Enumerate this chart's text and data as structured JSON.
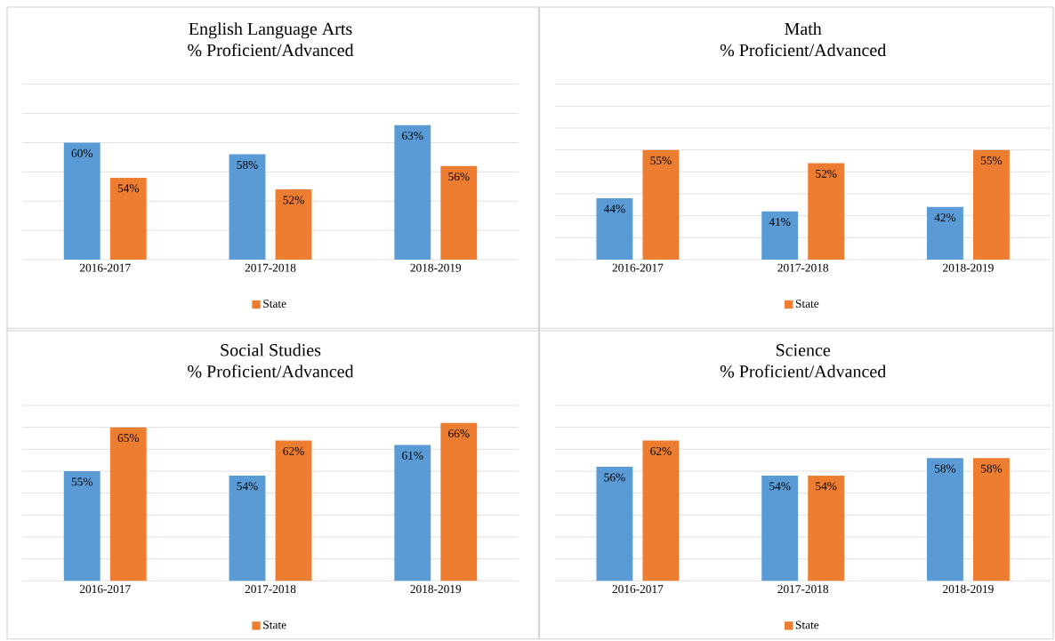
{
  "chart_data": [
    {
      "type": "bar",
      "title": "English Language Arts",
      "subtitle": "% Proficient/Advanced",
      "categories": [
        "2016-2017",
        "2017-2018",
        "2018-2019"
      ],
      "series": [
        {
          "color": "#5b9bd5",
          "values": [
            60,
            58,
            63
          ],
          "value_labels": [
            "60%",
            "58%",
            "63%"
          ]
        },
        {
          "name": "State",
          "color": "#ed7d31",
          "values": [
            54,
            52,
            56
          ],
          "value_labels": [
            "54%",
            "52%",
            "56%"
          ]
        }
      ],
      "ylim": [
        40,
        70
      ],
      "yticks": [
        {
          "value": 40,
          "label": null
        },
        {
          "value": 45,
          "label": null
        },
        {
          "value": 50,
          "label": null
        },
        {
          "value": 55,
          "label": null
        },
        {
          "value": 60,
          "label": null
        },
        {
          "value": 65,
          "label": null
        },
        {
          "value": 70,
          "label": null
        }
      ],
      "tick_labels": "x",
      "grid": "y",
      "legend": "bottom"
    },
    {
      "type": "bar",
      "title": "Math",
      "subtitle": "% Proficient/Advanced",
      "categories": [
        "2016-2017",
        "2017-2018",
        "2018-2019"
      ],
      "series": [
        {
          "color": "#5b9bd5",
          "values": [
            44,
            41,
            42
          ],
          "value_labels": [
            "44%",
            "41%",
            "42%"
          ]
        },
        {
          "name": "State",
          "color": "#ed7d31",
          "values": [
            55,
            52,
            55
          ],
          "value_labels": [
            "55%",
            "52%",
            "55%"
          ]
        }
      ],
      "ylim": [
        30,
        70
      ],
      "yticks": [
        {
          "value": 30,
          "label": null
        },
        {
          "value": 35,
          "label": null
        },
        {
          "value": 40,
          "label": null
        },
        {
          "value": 45,
          "label": null
        },
        {
          "value": 50,
          "label": null
        },
        {
          "value": 55,
          "label": null
        },
        {
          "value": 60,
          "label": null
        },
        {
          "value": 65,
          "label": null
        },
        {
          "value": 70,
          "label": null
        }
      ],
      "tick_labels": "x",
      "grid": "y",
      "legend": "bottom"
    },
    {
      "type": "bar",
      "title": "Social Studies",
      "subtitle": "% Proficient/Advanced",
      "categories": [
        "2016-2017",
        "2017-2018",
        "2018-2019"
      ],
      "series": [
        {
          "color": "#5b9bd5",
          "values": [
            55,
            54,
            61
          ],
          "value_labels": [
            "55%",
            "54%",
            "61%"
          ]
        },
        {
          "name": "State",
          "color": "#ed7d31",
          "values": [
            65,
            62,
            66
          ],
          "value_labels": [
            "65%",
            "62%",
            "66%"
          ]
        }
      ],
      "ylim": [
        30,
        70
      ],
      "yticks": [
        {
          "value": 30,
          "label": null
        },
        {
          "value": 35,
          "label": null
        },
        {
          "value": 40,
          "label": null
        },
        {
          "value": 45,
          "label": null
        },
        {
          "value": 50,
          "label": null
        },
        {
          "value": 55,
          "label": null
        },
        {
          "value": 60,
          "label": null
        },
        {
          "value": 65,
          "label": null
        },
        {
          "value": 70,
          "label": null
        }
      ],
      "tick_labels": "x",
      "grid": "y",
      "legend": "bottom"
    },
    {
      "type": "bar",
      "title": "Science",
      "subtitle": "% Proficient/Advanced",
      "categories": [
        "2016-2017",
        "2017-2018",
        "2018-2019"
      ],
      "series": [
        {
          "color": "#5b9bd5",
          "values": [
            56,
            54,
            58
          ],
          "value_labels": [
            "56%",
            "54%",
            "58%"
          ]
        },
        {
          "name": "State",
          "color": "#ed7d31",
          "values": [
            62,
            54,
            58
          ],
          "value_labels": [
            "62%",
            "54%",
            "58%"
          ]
        }
      ],
      "ylim": [
        30,
        70
      ],
      "yticks": [
        {
          "value": 30,
          "label": null
        },
        {
          "value": 35,
          "label": null
        },
        {
          "value": 40,
          "label": null
        },
        {
          "value": 45,
          "label": null
        },
        {
          "value": 50,
          "label": null
        },
        {
          "value": 55,
          "label": null
        },
        {
          "value": 60,
          "label": null
        },
        {
          "value": 65,
          "label": null
        },
        {
          "value": 70,
          "label": null
        }
      ],
      "tick_labels": "x",
      "grid": "y",
      "legend": "bottom"
    }
  ]
}
